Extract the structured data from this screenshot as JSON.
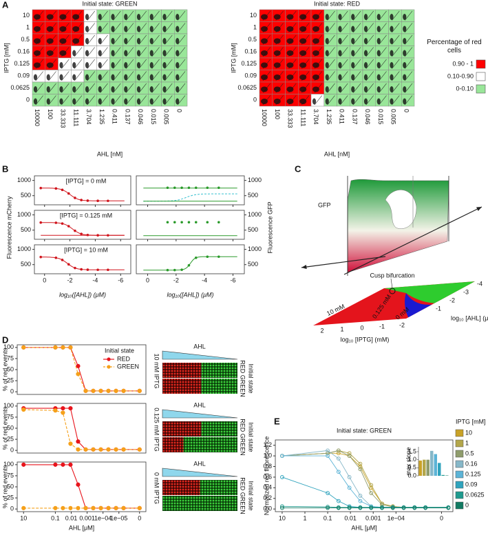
{
  "panel_labels": [
    "A",
    "B",
    "C",
    "D",
    "E"
  ],
  "panel_a": {
    "iptg_label": "IPTG [mM]",
    "ahl_label": "AHL [nM]",
    "iptg": [
      "10",
      "1",
      "0.5",
      "0.16",
      "0.125",
      "0.09",
      "0.0625",
      "0"
    ],
    "ahl": [
      "10000",
      "100",
      "33.333",
      "11.111",
      "3.704",
      "1.235",
      "0.411",
      "0.137",
      "0.046",
      "0.015",
      "0.005",
      "0"
    ],
    "grids": [
      {
        "title": "Initial state: GREEN",
        "red_cells": [
          4,
          4,
          4,
          3,
          2,
          0,
          0,
          0
        ],
        "white_cells": [
          1,
          1,
          2,
          3,
          4,
          4,
          0,
          0
        ]
      },
      {
        "title": "Initial state: RED",
        "red_cells": [
          5,
          5,
          5,
          5,
          5,
          5,
          5,
          4
        ],
        "white_cells": [
          0,
          0,
          0,
          0,
          0,
          0,
          0,
          1
        ]
      }
    ],
    "legend": {
      "title": "Percentage of red cells",
      "items": [
        {
          "label": "0.90 - 1",
          "color": "#ff0000"
        },
        {
          "label": "0.10-0.90",
          "color": "#ffffff"
        },
        {
          "label": "0-0.10",
          "color": "#99e699"
        }
      ]
    }
  },
  "panel_b": {
    "ylabel_left": "Fluorescence mCherry",
    "ylabel_right": "Fluorescence GFP",
    "xlabel": "log₁₀([AHL]) (μM)",
    "annotations": [
      "[IPTG] = 0 mM",
      "[IPTG] = 0.125 mM",
      "[IPTG] = 10 mM"
    ],
    "yticks": [
      500,
      1000
    ],
    "xticks": [
      0,
      -2,
      -4,
      -6
    ],
    "ylim": [
      200,
      1150
    ],
    "xlim": [
      0.8,
      -6.8
    ]
  },
  "panel_c": {
    "ylabel": "GFP",
    "annotation": "Cusp bifurcation",
    "regions": [
      "10 mM",
      "0.125 mM",
      "0 mM"
    ],
    "iptg_label": "log₁₀ [IPTG] (mM)",
    "ahl_label": "log₁₀ [AHL] (μM)",
    "iptg_ticks": [
      2,
      1,
      0,
      -1,
      -2
    ],
    "ahl_ticks": [
      -4,
      -3,
      -2,
      -1
    ]
  },
  "chart_data": [
    {
      "type": "line",
      "annotation": "10 mM IPTG",
      "ylabel": "% of red events",
      "legend_title": "Initial state",
      "image_labels": {
        "gradient": "AHL",
        "side": "Initial state",
        "states": "RED GREEN"
      },
      "x": [
        1,
        -1,
        -1.477,
        -1.954,
        -2.431,
        -2.909,
        -3.386,
        -3.863,
        -4.34,
        -4.817,
        -5.294,
        -6.3
      ],
      "series": [
        {
          "name": "RED",
          "color": "#e8141c",
          "values": [
            100,
            100,
            100,
            100,
            58,
            2,
            2,
            2,
            2,
            2,
            2,
            2
          ]
        },
        {
          "name": "GREEN",
          "color": "#f5a01a",
          "dashed": true,
          "values": [
            100,
            100,
            100,
            100,
            40,
            2,
            2,
            2,
            2,
            2,
            2,
            2
          ]
        }
      ],
      "xlim": [
        1.4,
        -6.7
      ],
      "ylim": [
        -6,
        106
      ],
      "yticks": [
        0,
        25,
        50,
        75,
        100
      ]
    },
    {
      "type": "line",
      "annotation": "0.125 mM IPTG",
      "ylabel": "% of red events",
      "image_labels": {
        "gradient": "AHL",
        "side": "Initial state",
        "states": "RED GREEN"
      },
      "x": [
        1,
        -1,
        -1.477,
        -1.954,
        -2.431,
        -2.909,
        -3.386,
        -3.863,
        -4.34,
        -4.817,
        -5.294,
        -6.3
      ],
      "series": [
        {
          "name": "RED",
          "color": "#e8141c",
          "values": [
            95,
            95,
            95,
            95,
            20,
            2,
            2,
            2,
            2,
            2,
            2,
            2
          ]
        },
        {
          "name": "GREEN",
          "color": "#f5a01a",
          "dashed": true,
          "values": [
            92,
            90,
            85,
            15,
            2,
            2,
            2,
            2,
            2,
            2,
            2,
            2
          ]
        }
      ],
      "xlim": [
        1.4,
        -6.7
      ],
      "ylim": [
        -6,
        106
      ],
      "yticks": [
        0,
        25,
        50,
        75,
        100
      ]
    },
    {
      "type": "line",
      "annotation": "0 mM IPTG",
      "ylabel": "% of red events",
      "xlabel": "AHL [μM]",
      "image_labels": {
        "gradient": "AHL",
        "side": "Initial state",
        "states": "RED GREEN"
      },
      "x": [
        1,
        -1,
        -1.477,
        -1.954,
        -2.431,
        -2.909,
        -3.386,
        -3.863,
        -4.34,
        -4.817,
        -5.294,
        -6.3
      ],
      "series": [
        {
          "name": "RED",
          "color": "#e8141c",
          "values": [
            100,
            100,
            100,
            100,
            55,
            2,
            2,
            2,
            2,
            2,
            2,
            2
          ]
        },
        {
          "name": "GREEN",
          "color": "#f5a01a",
          "dashed": true,
          "values": [
            2,
            2,
            2,
            2,
            2,
            2,
            2,
            2,
            2,
            2,
            2,
            2
          ]
        }
      ],
      "xlim": [
        1.4,
        -6.7
      ],
      "ylim": [
        -6,
        106
      ],
      "yticks": [
        0,
        25,
        50,
        75,
        100
      ],
      "xticks": [
        {
          "value": 1,
          "label": "10"
        },
        {
          "value": -1,
          "label": "0.1"
        },
        {
          "value": -2,
          "label": "0.01"
        },
        {
          "value": -3,
          "label": "0.001"
        },
        {
          "value": -4,
          "label": "1e−04"
        },
        {
          "value": -5,
          "label": "1e−05"
        },
        {
          "value": -6.3,
          "label": "0"
        }
      ]
    },
    {
      "type": "line",
      "title": "Initial state: GREEN",
      "ylabel": "Normalized red fluorescence",
      "xlabel": "AHL [μM]",
      "legend_title": "IPTG [mM]",
      "x": [
        1,
        -1,
        -1.477,
        -1.954,
        -2.431,
        -2.909,
        -3.386,
        -3.863,
        -4.34,
        -4.817,
        -5.294,
        -6.3
      ],
      "series": [
        {
          "name": "10",
          "color": "#c9a227",
          "values": [
            1.0,
            1.05,
            1.05,
            1.0,
            0.8,
            0.4,
            0.1,
            0.05,
            0.03,
            0.03,
            0.03,
            0.03
          ]
        },
        {
          "name": "1",
          "color": "#b3a64a",
          "values": [
            1.0,
            1.05,
            1.1,
            1.05,
            0.85,
            0.45,
            0.1,
            0.05,
            0.03,
            0.03,
            0.03,
            0.03
          ]
        },
        {
          "name": "0.5",
          "color": "#8f9c6c",
          "values": [
            1.0,
            1.05,
            1.1,
            1.0,
            0.75,
            0.3,
            0.08,
            0.04,
            0.03,
            0.03,
            0.03,
            0.03
          ]
        },
        {
          "name": "0.16",
          "color": "#86b7c8",
          "values": [
            1.0,
            1.1,
            0.95,
            0.6,
            0.25,
            0.05,
            0.03,
            0.03,
            0.03,
            0.03,
            0.03,
            0.03
          ]
        },
        {
          "name": "0.125",
          "color": "#5cb3d6",
          "values": [
            1.0,
            1.0,
            0.7,
            0.4,
            0.15,
            0.05,
            0.03,
            0.03,
            0.03,
            0.03,
            0.03,
            0.03
          ]
        },
        {
          "name": "0.09",
          "color": "#2fa3bd",
          "values": [
            0.6,
            0.3,
            0.15,
            0.05,
            0.03,
            0.03,
            0.03,
            0.03,
            0.03,
            0.03,
            0.03,
            0.03
          ]
        },
        {
          "name": "0.0625",
          "color": "#1f9a8e",
          "values": [
            0.05,
            0.04,
            0.03,
            0.03,
            0.03,
            0.03,
            0.03,
            0.03,
            0.03,
            0.03,
            0.03,
            0.03
          ]
        },
        {
          "name": "0",
          "color": "#127a62",
          "values": [
            0.02,
            0.02,
            0.02,
            0.02,
            0.02,
            0.02,
            0.02,
            0.02,
            0.02,
            0.02,
            0.02,
            0.02
          ]
        }
      ],
      "xlim": [
        1.3,
        -6.5
      ],
      "ylim": [
        -0.05,
        1.3
      ],
      "xticks": [
        {
          "value": 1,
          "label": "10"
        },
        {
          "value": 0,
          "label": "1"
        },
        {
          "value": -1,
          "label": "0.1"
        },
        {
          "value": -2,
          "label": "0.01"
        },
        {
          "value": -3,
          "label": "0.001"
        },
        {
          "value": -4,
          "label": "1e−04"
        },
        {
          "value": -6,
          "label": "0"
        }
      ],
      "yticks": [
        {
          "value": 0,
          "label": "0.0"
        },
        0.2,
        0.4,
        0.6,
        0.8,
        {
          "value": 1,
          "label": "1.0"
        },
        1.2
      ]
    },
    {
      "type": "bar",
      "title": "max slope",
      "values": [
        0.95,
        1.0,
        1.0,
        1.55,
        1.35,
        0.8,
        0.05,
        0.02
      ],
      "ylim": [
        0,
        1.8
      ],
      "yticks": [
        {
          "value": 0,
          "label": "0.0"
        },
        0.5,
        {
          "value": 1,
          "label": "1.0"
        },
        1.5
      ]
    }
  ]
}
